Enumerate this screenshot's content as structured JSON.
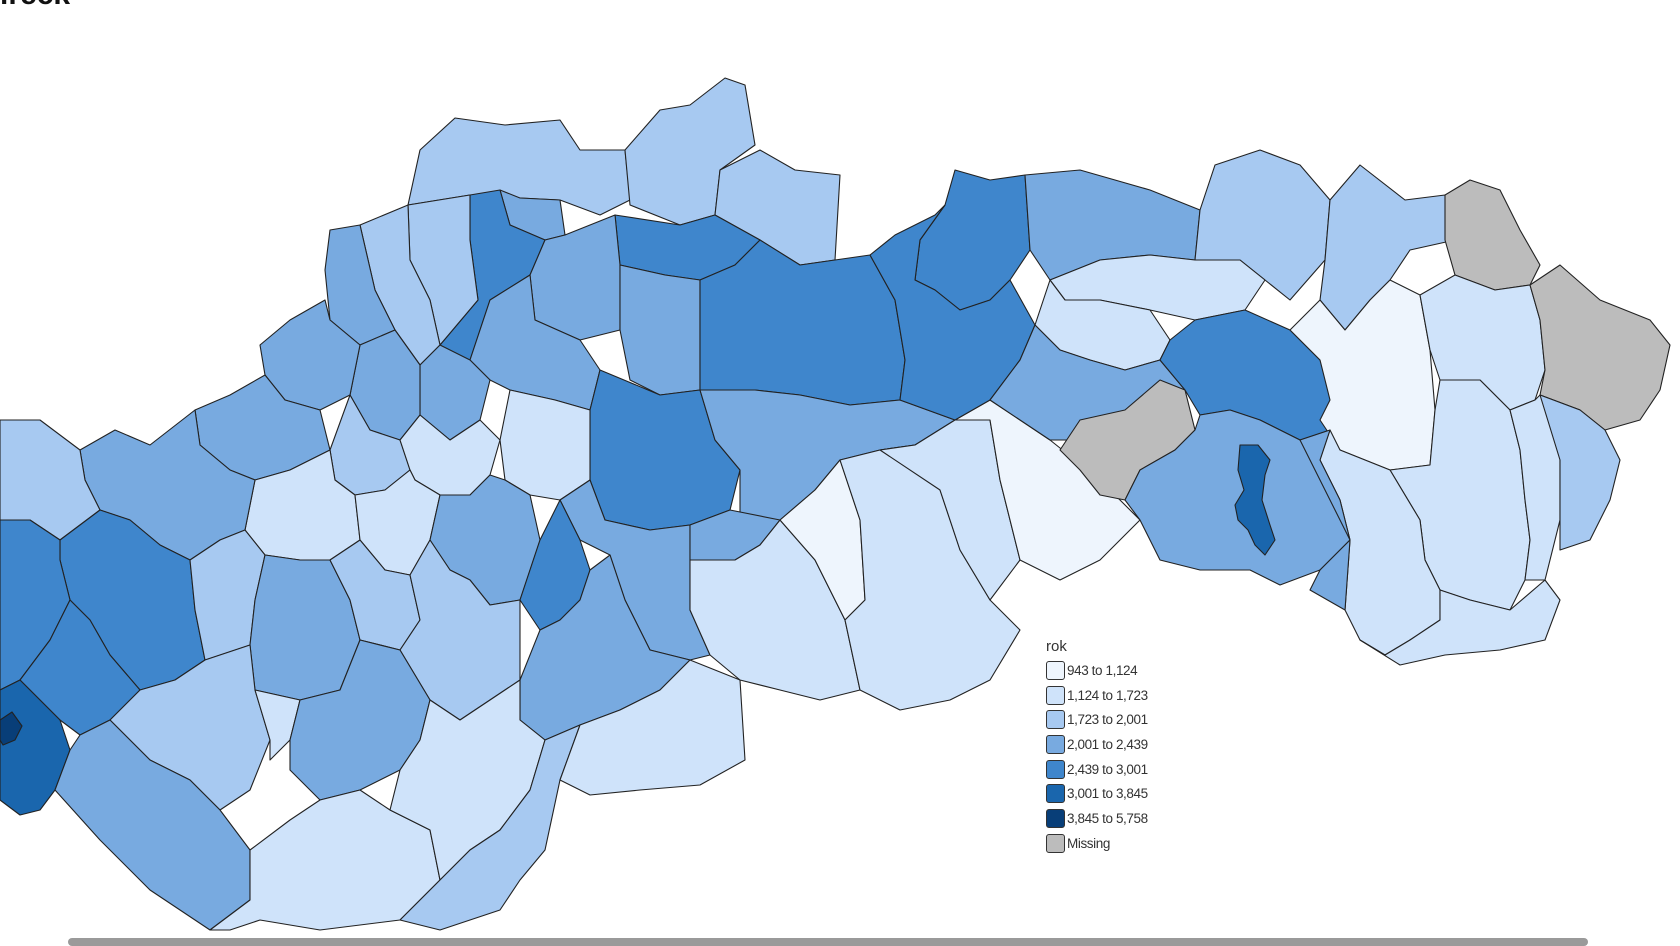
{
  "title_fragment": "ireck",
  "legend": {
    "title": "rok",
    "items": [
      {
        "label": "943 to 1,124",
        "color": "#eef5fd"
      },
      {
        "label": "1,124 to 1,723",
        "color": "#cfe3fa"
      },
      {
        "label": "1,723 to 2,001",
        "color": "#a7c9f1"
      },
      {
        "label": "2,001 to 2,439",
        "color": "#78aae0"
      },
      {
        "label": "2,439 to 3,001",
        "color": "#3f86cc"
      },
      {
        "label": "3,001 to 3,845",
        "color": "#1a66ad"
      },
      {
        "label": "3,845 to 5,758",
        "color": "#083e78"
      },
      {
        "label": "Missing",
        "color": "#bcbcbc"
      }
    ]
  },
  "map": {
    "outline": "#222222"
  }
}
